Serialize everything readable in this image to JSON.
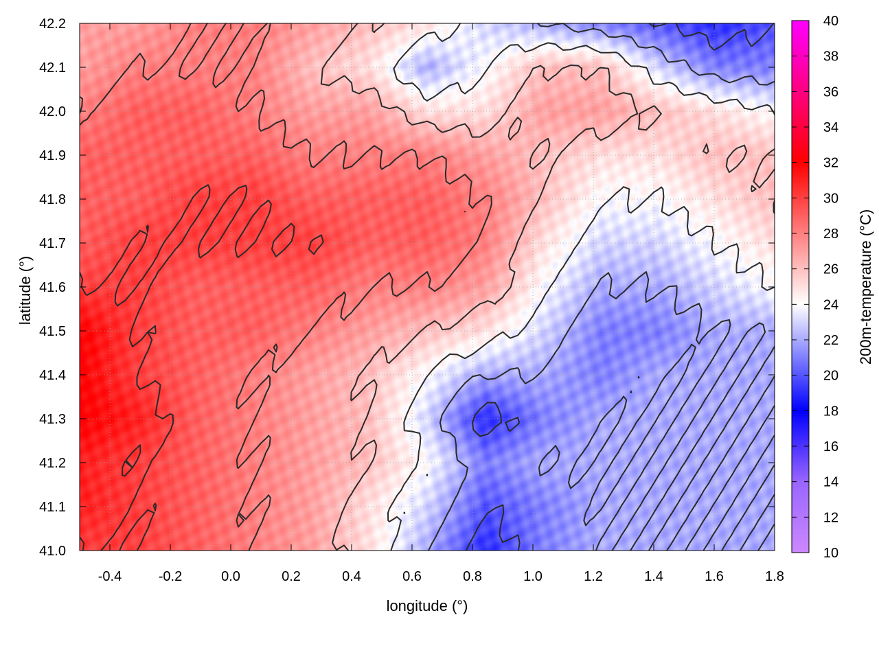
{
  "chart_data": {
    "type": "heatmap",
    "title": "",
    "xlabel": "longitude (°)",
    "ylabel": "latitude (°)",
    "colorbar_label": "200m-temperature (°C)",
    "xlim": [
      -0.5,
      1.8
    ],
    "ylim": [
      41.0,
      42.2
    ],
    "x_ticks": [
      "-0.4",
      "-0.2",
      "0.0",
      "0.2",
      "0.4",
      "0.6",
      "0.8",
      "1.0",
      "1.2",
      "1.4",
      "1.6",
      "1.8"
    ],
    "x_tick_values": [
      -0.4,
      -0.2,
      0.0,
      0.2,
      0.4,
      0.6,
      0.8,
      1.0,
      1.2,
      1.4,
      1.6,
      1.8
    ],
    "y_ticks": [
      "41.0",
      "41.1",
      "41.2",
      "41.3",
      "41.4",
      "41.5",
      "41.6",
      "41.7",
      "41.8",
      "41.9",
      "42.0",
      "42.1",
      "42.2"
    ],
    "y_tick_values": [
      41.0,
      41.1,
      41.2,
      41.3,
      41.4,
      41.5,
      41.6,
      41.7,
      41.8,
      41.9,
      42.0,
      42.1,
      42.2
    ],
    "cbar_ticks": [
      "10",
      "12",
      "14",
      "16",
      "18",
      "20",
      "22",
      "24",
      "26",
      "28",
      "30",
      "32",
      "34",
      "36",
      "38",
      "40"
    ],
    "cbar_tick_values": [
      10,
      12,
      14,
      16,
      18,
      20,
      22,
      24,
      26,
      28,
      30,
      32,
      34,
      36,
      38,
      40
    ],
    "cbar_range": [
      10,
      40
    ],
    "grid": true,
    "colormap": [
      {
        "value": 10,
        "color": "#cc88ff"
      },
      {
        "value": 14,
        "color": "#9966ff"
      },
      {
        "value": 18,
        "color": "#0000ff"
      },
      {
        "value": 24,
        "color": "#ffffff"
      },
      {
        "value": 32,
        "color": "#ff0000"
      },
      {
        "value": 36,
        "color": "#ff0080"
      },
      {
        "value": 40,
        "color": "#ff00ff"
      }
    ],
    "field_samples": {
      "x": [
        -0.5,
        -0.3,
        -0.1,
        0.1,
        0.3,
        0.5,
        0.7,
        0.9,
        1.1,
        1.3,
        1.5,
        1.7,
        1.8
      ],
      "y": [
        41.0,
        41.1,
        41.2,
        41.3,
        41.4,
        41.5,
        41.6,
        41.7,
        41.8,
        41.9,
        42.0,
        42.1,
        42.2
      ],
      "z": [
        [
          30,
          30,
          29,
          28,
          27,
          25,
          22,
          19,
          21,
          22,
          22,
          22,
          22
        ],
        [
          31,
          30,
          29,
          28,
          27,
          25,
          23,
          20,
          21,
          22,
          22,
          22,
          22
        ],
        [
          31,
          30,
          29,
          28,
          27,
          26,
          24,
          21,
          22,
          22,
          22,
          22,
          22
        ],
        [
          32,
          31,
          29,
          28,
          27,
          26,
          23,
          19,
          21,
          22,
          22,
          22,
          22
        ],
        [
          32,
          30,
          29,
          28,
          27,
          26,
          24,
          22,
          22,
          21,
          22,
          22,
          22
        ],
        [
          32,
          30,
          29,
          29,
          28,
          27,
          26,
          25,
          23,
          21,
          21,
          22,
          22
        ],
        [
          30,
          30,
          29,
          29,
          29,
          28,
          28,
          27,
          24,
          22,
          22,
          23,
          24
        ],
        [
          29,
          30,
          30,
          30,
          30,
          29,
          29,
          28,
          25,
          23,
          23,
          24,
          25
        ],
        [
          29,
          29,
          30,
          30,
          29,
          29,
          29,
          28,
          26,
          24,
          24,
          25,
          26
        ],
        [
          29,
          29,
          29,
          29,
          28,
          28,
          28,
          27,
          26,
          25,
          25,
          26,
          26
        ],
        [
          28,
          29,
          29,
          28,
          27,
          27,
          25,
          25,
          27,
          27,
          26,
          25,
          24
        ],
        [
          27,
          28,
          28,
          28,
          26,
          25,
          22,
          24,
          26,
          26,
          23,
          21,
          21
        ],
        [
          27,
          27,
          28,
          28,
          27,
          26,
          25,
          23,
          22,
          21,
          20,
          19,
          20
        ]
      ]
    },
    "contour_levels": [
      20,
      22,
      24,
      26,
      28,
      30
    ]
  }
}
